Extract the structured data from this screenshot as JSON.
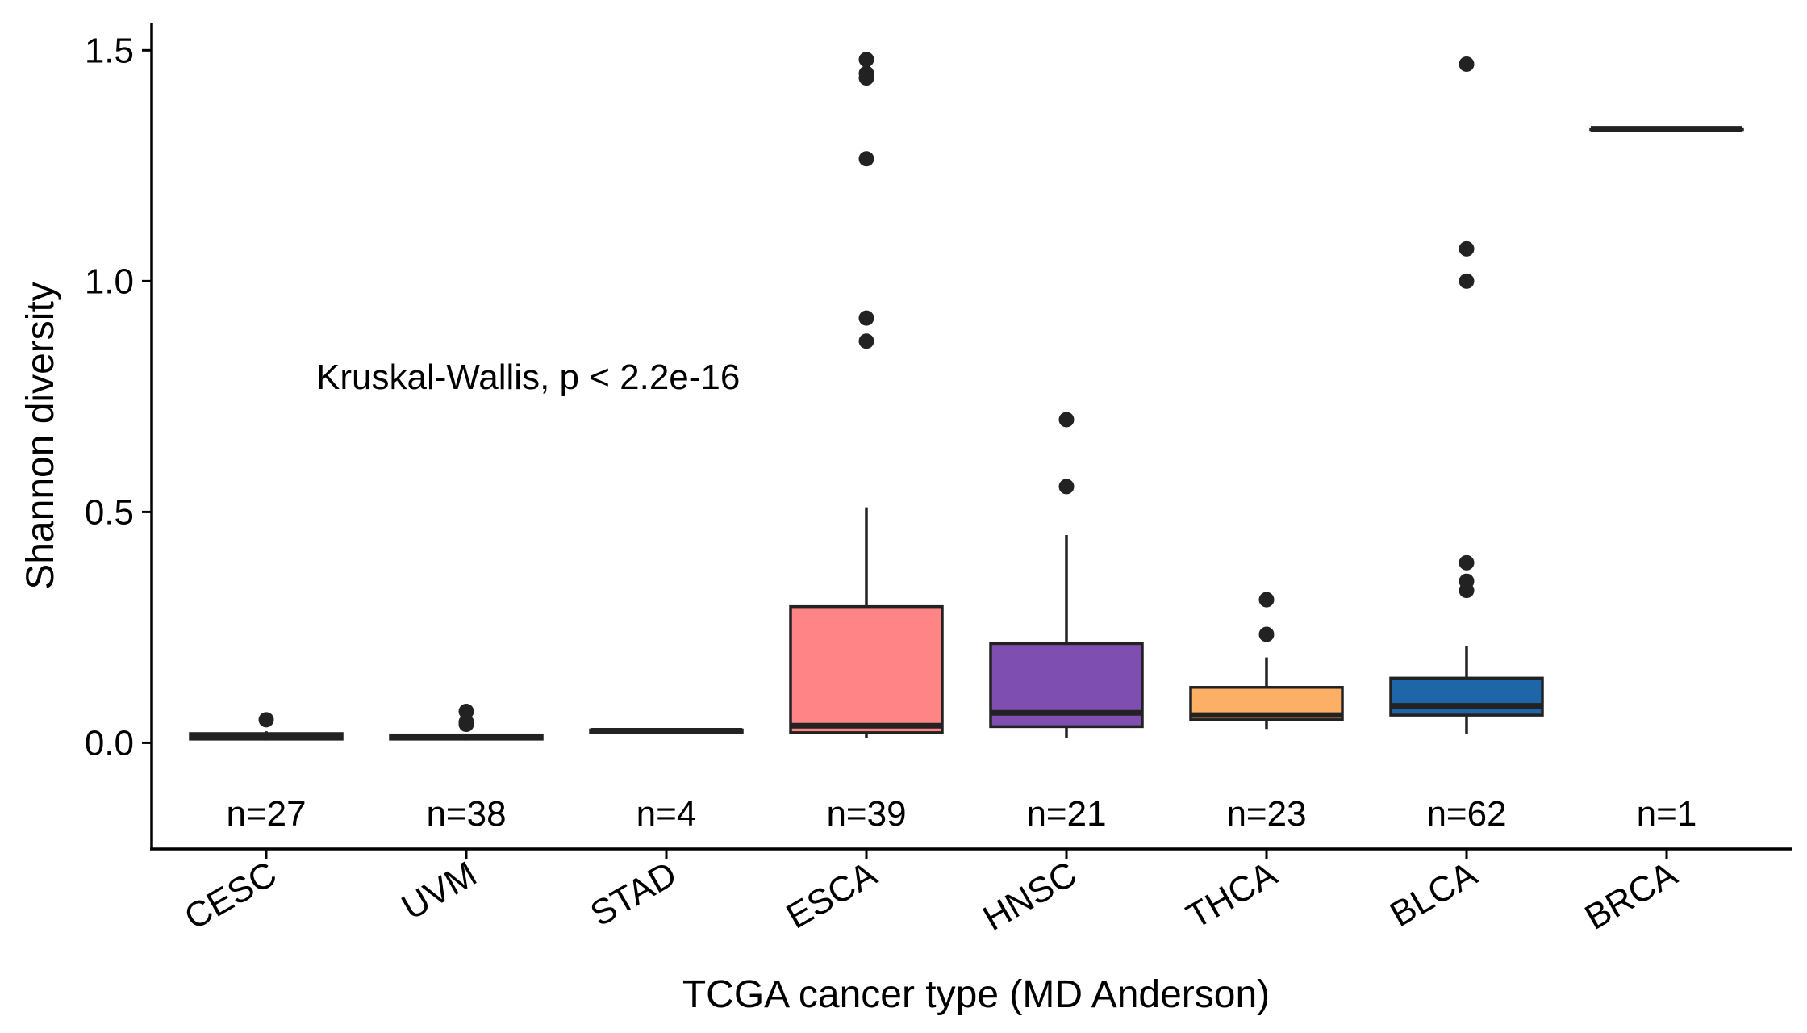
{
  "chart_data": {
    "type": "box",
    "title": "",
    "xlabel": "TCGA cancer type (MD Anderson)",
    "ylabel": "Shannon diversity",
    "ylim": [
      -0.23,
      1.56
    ],
    "yticks": [
      0.0,
      0.5,
      1.0,
      1.5
    ],
    "ytick_labels": [
      "0.0",
      "0.5",
      "1.0",
      "1.5"
    ],
    "grid": false,
    "legend": "none",
    "annotation": "Kruskal-Wallis, p < 2.2e-16",
    "categories": [
      "CESC",
      "UVM",
      "STAD",
      "ESCA",
      "HNSC",
      "THCA",
      "BLCA",
      "BRCA"
    ],
    "n_labels": [
      "n=27",
      "n=38",
      "n=4",
      "n=39",
      "n=21",
      "n=23",
      "n=62",
      "n=1"
    ],
    "series": [
      {
        "category": "CESC",
        "color": "#7a7a7a",
        "min": 0.005,
        "q1": 0.008,
        "median": 0.013,
        "q3": 0.02,
        "max": 0.025,
        "outliers": [
          0.05
        ]
      },
      {
        "category": "UVM",
        "color": "#7a7a7a",
        "min": 0.005,
        "q1": 0.008,
        "median": 0.012,
        "q3": 0.017,
        "max": 0.02,
        "outliers": [
          0.04,
          0.045,
          0.068
        ]
      },
      {
        "category": "STAD",
        "color": "#8a8a8a",
        "min": 0.02,
        "q1": 0.022,
        "median": 0.026,
        "q3": 0.028,
        "max": 0.03,
        "outliers": []
      },
      {
        "category": "ESCA",
        "color": "#ff8486",
        "min": 0.01,
        "q1": 0.022,
        "median": 0.037,
        "q3": 0.295,
        "max": 0.51,
        "outliers": [
          0.87,
          0.92,
          1.265,
          1.44,
          1.45,
          1.48
        ]
      },
      {
        "category": "HNSC",
        "color": "#7e4fb0",
        "min": 0.01,
        "q1": 0.035,
        "median": 0.065,
        "q3": 0.215,
        "max": 0.45,
        "outliers": [
          0.555,
          0.7
        ]
      },
      {
        "category": "THCA",
        "color": "#fdaf66",
        "min": 0.03,
        "q1": 0.05,
        "median": 0.06,
        "q3": 0.12,
        "max": 0.185,
        "outliers": [
          0.235,
          0.31
        ]
      },
      {
        "category": "BLCA",
        "color": "#1f66a8",
        "min": 0.02,
        "q1": 0.06,
        "median": 0.08,
        "q3": 0.14,
        "max": 0.21,
        "outliers": [
          0.33,
          0.35,
          0.39,
          1.0,
          1.07,
          1.47
        ]
      },
      {
        "category": "BRCA",
        "color": "#7a7a7a",
        "min": 1.33,
        "q1": 1.33,
        "median": 1.33,
        "q3": 1.33,
        "max": 1.33,
        "outliers": []
      }
    ]
  }
}
